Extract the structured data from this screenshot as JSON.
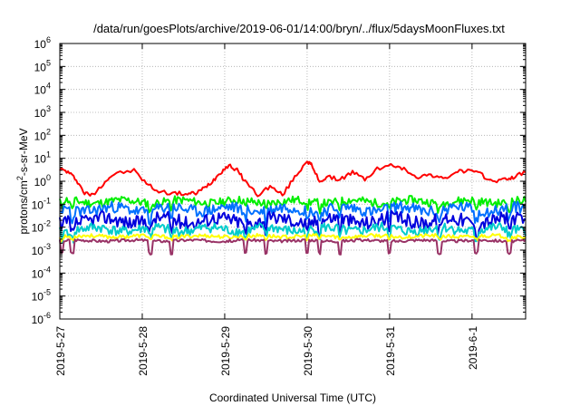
{
  "chart_data": {
    "type": "line",
    "title": "/data/run/goesPlots/archive/2019-06-01/14:00/bryn/../flux/5daysMoonFluxes.txt",
    "xlabel": "Coordinated Universal Time (UTC)",
    "ylabel_main": "protons/cm",
    "ylabel_sup": "2",
    "ylabel_rest": "-s-sr-MeV",
    "yscale": "log",
    "ylim_exp": [
      -6,
      6
    ],
    "ytick_base": "10",
    "ytick_exponents": [
      "-6",
      "-5",
      "-4",
      "-3",
      "-2",
      "-1",
      "0",
      "1",
      "2",
      "3",
      "4",
      "5",
      "6"
    ],
    "xlim_days": [
      0,
      5.65
    ],
    "xtick_labels": [
      "2019-5-27",
      "2019-5-28",
      "2019-5-29",
      "2019-5-30",
      "2019-5-31",
      "2019-6-1"
    ],
    "grid": true,
    "series": [
      {
        "color": "#ff0000",
        "profile": "red",
        "x": [
          0,
          0.1,
          0.2,
          0.3,
          0.4,
          0.55,
          0.65,
          0.9,
          1.05,
          1.2,
          1.4,
          1.55,
          1.65,
          1.75,
          1.85,
          1.95,
          2.05,
          2.15,
          2.25,
          2.4,
          2.55,
          2.7,
          2.85,
          3.0,
          3.05,
          3.15,
          3.25,
          3.4,
          3.55,
          3.7,
          3.85,
          4.05,
          4.2,
          4.35,
          4.5,
          4.65,
          4.8,
          4.95,
          5.1,
          5.25,
          5.4,
          5.5,
          5.65
        ],
        "y": [
          3.5,
          2.5,
          1.2,
          0.3,
          0.25,
          1.0,
          2.0,
          3.0,
          0.8,
          0.35,
          0.3,
          0.28,
          0.3,
          0.5,
          1.0,
          2.5,
          5.0,
          3.0,
          1.0,
          0.25,
          0.6,
          0.25,
          1.5,
          8.0,
          5.0,
          1.0,
          1.5,
          1.2,
          2.5,
          1.2,
          3.5,
          5.0,
          3.0,
          1.5,
          2.0,
          1.2,
          2.5,
          3.0,
          2.0,
          1.0,
          1.2,
          1.5,
          2.5
        ]
      },
      {
        "color": "#00ee00",
        "profile": "green",
        "base": 0.13,
        "amp": 0.18,
        "seed": 11
      },
      {
        "color": "#0070ff",
        "profile": "lightblue",
        "base": 0.06,
        "amp": 0.25,
        "seed": 23
      },
      {
        "color": "#0000dd",
        "profile": "blue",
        "base": 0.02,
        "amp": 0.3,
        "seed": 37
      },
      {
        "color": "#00cccc",
        "profile": "cyan",
        "base": 0.008,
        "amp": 0.22,
        "seed": 41
      },
      {
        "color": "#ffff00",
        "profile": "yellow",
        "base": 0.004,
        "amp": 0.08,
        "seed": 53
      },
      {
        "color": "#993366",
        "profile": "purple",
        "base": 0.0026,
        "amp": 0.06,
        "seed": 67
      }
    ]
  }
}
